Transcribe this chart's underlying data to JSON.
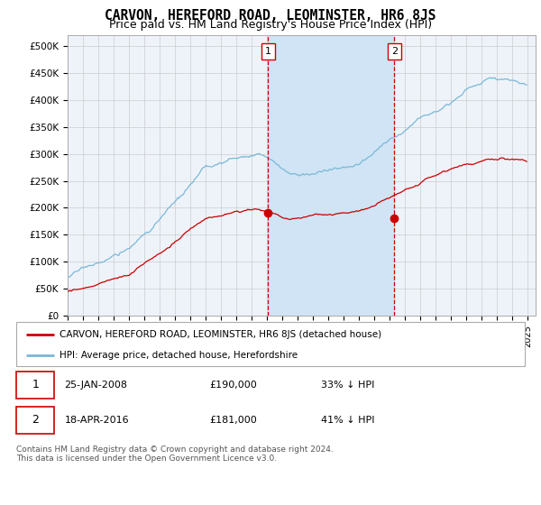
{
  "title": "CARVON, HEREFORD ROAD, LEOMINSTER, HR6 8JS",
  "subtitle": "Price paid vs. HM Land Registry's House Price Index (HPI)",
  "ylabel_ticks": [
    "£0",
    "£50K",
    "£100K",
    "£150K",
    "£200K",
    "£250K",
    "£300K",
    "£350K",
    "£400K",
    "£450K",
    "£500K"
  ],
  "ytick_values": [
    0,
    50000,
    100000,
    150000,
    200000,
    250000,
    300000,
    350000,
    400000,
    450000,
    500000
  ],
  "ylim": [
    0,
    520000
  ],
  "xlim_start": 1995.0,
  "xlim_end": 2025.5,
  "sale1_x": 2008.07,
  "sale1_y": 190000,
  "sale1_label": "25-JAN-2008",
  "sale1_price": "£190,000",
  "sale1_pct": "33% ↓ HPI",
  "sale2_x": 2016.3,
  "sale2_y": 181000,
  "sale2_label": "18-APR-2016",
  "sale2_price": "£181,000",
  "sale2_pct": "41% ↓ HPI",
  "hpi_color": "#7ab8d8",
  "price_color": "#cc0000",
  "vline_color": "#cc0000",
  "grid_color": "#cccccc",
  "background_color": "#ffffff",
  "plot_bg_color": "#eef3fa",
  "shade_color": "#d0e4f5",
  "legend_label_price": "CARVON, HEREFORD ROAD, LEOMINSTER, HR6 8JS (detached house)",
  "legend_label_hpi": "HPI: Average price, detached house, Herefordshire",
  "footnote": "Contains HM Land Registry data © Crown copyright and database right 2024.\nThis data is licensed under the Open Government Licence v3.0.",
  "xtick_years": [
    1995,
    1996,
    1997,
    1998,
    1999,
    2000,
    2001,
    2002,
    2003,
    2004,
    2005,
    2006,
    2007,
    2008,
    2009,
    2010,
    2011,
    2012,
    2013,
    2014,
    2015,
    2016,
    2017,
    2018,
    2019,
    2020,
    2021,
    2022,
    2023,
    2024,
    2025
  ]
}
